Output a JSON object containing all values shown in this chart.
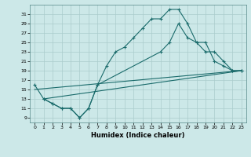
{
  "xlabel": "Humidex (Indice chaleur)",
  "bg_color": "#cce8e8",
  "grid_color": "#aacccc",
  "line_color": "#1a6b6b",
  "xlim": [
    -0.5,
    23.5
  ],
  "ylim": [
    8,
    33
  ],
  "xticks": [
    0,
    1,
    2,
    3,
    4,
    5,
    6,
    7,
    8,
    9,
    10,
    11,
    12,
    13,
    14,
    15,
    16,
    17,
    18,
    19,
    20,
    21,
    22,
    23
  ],
  "yticks": [
    9,
    11,
    13,
    15,
    17,
    19,
    21,
    23,
    25,
    27,
    29,
    31
  ],
  "line1": {
    "x": [
      0,
      1,
      2,
      3,
      4,
      5,
      6,
      7,
      8,
      9,
      10,
      11,
      12,
      13,
      14,
      15,
      16,
      17,
      18,
      19,
      20,
      21,
      22,
      23
    ],
    "y": [
      16,
      13,
      12,
      11,
      11,
      9,
      11,
      16,
      20,
      23,
      24,
      26,
      28,
      30,
      30,
      32,
      32,
      29,
      25,
      25,
      21,
      20,
      19,
      19
    ]
  },
  "line2": {
    "x": [
      1,
      2,
      3,
      4,
      5,
      6,
      7,
      14,
      15,
      16,
      17,
      18,
      19,
      20,
      21,
      22,
      23
    ],
    "y": [
      13,
      12,
      11,
      11,
      9,
      11,
      16,
      23,
      25,
      29,
      26,
      25,
      23,
      23,
      21,
      19,
      19
    ]
  },
  "line3": {
    "x": [
      0,
      23
    ],
    "y": [
      15,
      19
    ]
  },
  "line4": {
    "x": [
      1,
      23
    ],
    "y": [
      13,
      19
    ]
  }
}
